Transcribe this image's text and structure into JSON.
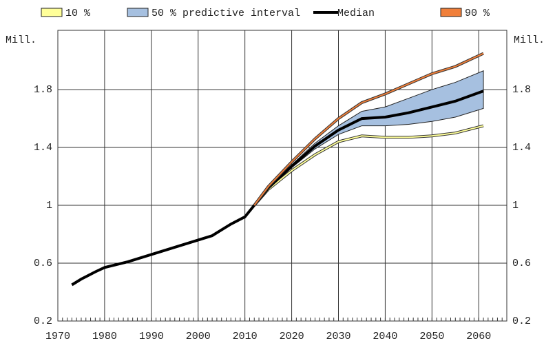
{
  "chart_data": {
    "type": "line",
    "y_label": "Mill.",
    "x": [
      1973,
      1975,
      1978,
      1980,
      1985,
      1990,
      1995,
      2000,
      2003,
      2005,
      2007,
      2010,
      2012,
      2015,
      2020,
      2025,
      2030,
      2035,
      2040,
      2045,
      2050,
      2055,
      2061
    ],
    "series": [
      {
        "name": "10 %",
        "color": "#ffff99",
        "values": [
          null,
          null,
          null,
          null,
          null,
          null,
          null,
          null,
          null,
          null,
          null,
          null,
          1.0,
          1.11,
          1.24,
          1.35,
          1.44,
          1.48,
          1.47,
          1.47,
          1.48,
          1.5,
          1.55
        ]
      },
      {
        "name": "50 % predictive interval",
        "color": "#a6c0e0",
        "lower": [
          null,
          null,
          null,
          null,
          null,
          null,
          null,
          null,
          null,
          null,
          null,
          null,
          1.0,
          1.12,
          1.26,
          1.39,
          1.49,
          1.55,
          1.55,
          1.56,
          1.58,
          1.61,
          1.67
        ],
        "upper": [
          null,
          null,
          null,
          null,
          null,
          null,
          null,
          null,
          null,
          null,
          null,
          null,
          1.0,
          1.13,
          1.28,
          1.43,
          1.55,
          1.65,
          1.68,
          1.74,
          1.8,
          1.85,
          1.93
        ]
      },
      {
        "name": "Median",
        "color": "#000000",
        "values": [
          0.45,
          0.49,
          0.54,
          0.57,
          0.61,
          0.66,
          0.71,
          0.76,
          0.79,
          0.83,
          0.87,
          0.92,
          1.0,
          1.12,
          1.27,
          1.41,
          1.52,
          1.6,
          1.61,
          1.64,
          1.68,
          1.72,
          1.79
        ]
      },
      {
        "name": "90 %",
        "color": "#f07f3a",
        "values": [
          null,
          null,
          null,
          null,
          null,
          null,
          null,
          null,
          null,
          null,
          null,
          null,
          1.0,
          1.13,
          1.3,
          1.46,
          1.6,
          1.71,
          1.77,
          1.84,
          1.91,
          1.96,
          2.05
        ]
      }
    ],
    "xlim": [
      1970,
      2066
    ],
    "xticks": [
      1970,
      1980,
      1990,
      2000,
      2010,
      2020,
      2030,
      2040,
      2050,
      2060
    ],
    "ylim": [
      0.2,
      2.21
    ],
    "yticks": [
      0.2,
      0.6,
      1,
      1.4,
      1.8
    ],
    "grid": true
  }
}
